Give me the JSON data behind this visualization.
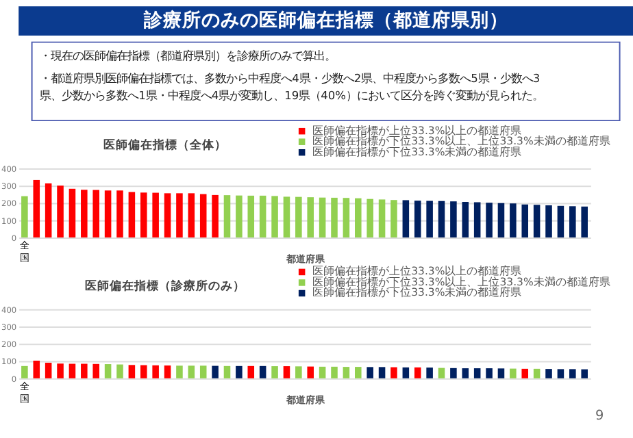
{
  "chart_data": [
    {
      "type": "other",
      "title": "診療所のみの医師偏在指標（都道府県別）",
      "annotations": [
        "・現在の医師偏在指標（都道府県別）を診療所のみで算出。",
        "・都道府県別医師偏在指標では、多数から中程度へ4県・少数へ2県、中程度から多数へ5県・少数へ3県、少数から多数へ1県・中程度へ4県が変動し、19県（40%）において区分を跨ぐ変動が見られた。"
      ]
    },
    {
      "type": "bar",
      "title": "医師偏在指標（全体）",
      "xlabel": "都道府県",
      "categories": [
        "全国",
        null,
        null,
        null,
        null,
        null,
        null,
        null,
        null,
        null,
        null,
        null,
        null,
        null,
        null,
        null,
        null,
        null,
        null,
        null,
        null,
        null,
        null,
        null,
        null,
        null,
        null,
        null,
        null,
        null,
        null,
        null,
        null,
        null,
        null,
        null,
        null,
        null,
        null,
        null,
        null,
        null,
        null,
        null,
        null,
        null,
        null,
        null
      ],
      "ylim": [
        0,
        400
      ],
      "yticks": [
        0,
        100,
        200,
        300,
        400
      ],
      "grid": "y",
      "legend": "top right",
      "series": [
        {
          "name": "医師偏在指標が上位33.3%以上の都道府県",
          "color": "#ff0000",
          "values": [
            null,
            333,
            313,
            300,
            282,
            276,
            275,
            272,
            272,
            263,
            260,
            259,
            256,
            256,
            256,
            251,
            246,
            null,
            null,
            null,
            null,
            null,
            null,
            null,
            null,
            null,
            null,
            null,
            null,
            null,
            null,
            null,
            null,
            null,
            null,
            null,
            null,
            null,
            null,
            null,
            null,
            null,
            null,
            null,
            null,
            null,
            null,
            null
          ]
        },
        {
          "name": "医師偏在指標が下位33.3%以上、上位33.3%未満の都道府県",
          "color": "#92d050",
          "values": [
            239,
            null,
            null,
            null,
            null,
            null,
            null,
            null,
            null,
            null,
            null,
            null,
            null,
            null,
            null,
            null,
            null,
            245,
            243,
            242,
            242,
            240,
            236,
            235,
            233,
            231,
            230,
            229,
            227,
            223,
            220,
            217,
            null,
            null,
            null,
            null,
            null,
            null,
            null,
            null,
            null,
            null,
            null,
            null,
            null,
            null,
            null,
            null
          ]
        },
        {
          "name": "医師偏在指標が下位33.3%未満の都道府県",
          "color": "#002060",
          "values": [
            null,
            null,
            null,
            null,
            null,
            null,
            null,
            null,
            null,
            null,
            null,
            null,
            null,
            null,
            null,
            null,
            null,
            null,
            null,
            null,
            null,
            null,
            null,
            null,
            null,
            null,
            null,
            null,
            null,
            null,
            null,
            null,
            216,
            213,
            212,
            211,
            209,
            206,
            204,
            201,
            199,
            197,
            191,
            189,
            186,
            183,
            181,
            179
          ]
        }
      ]
    },
    {
      "type": "bar",
      "title": "医師偏在指標（診療所のみ）",
      "xlabel": "都道府県",
      "categories": [
        "全国",
        null,
        null,
        null,
        null,
        null,
        null,
        null,
        null,
        null,
        null,
        null,
        null,
        null,
        null,
        null,
        null,
        null,
        null,
        null,
        null,
        null,
        null,
        null,
        null,
        null,
        null,
        null,
        null,
        null,
        null,
        null,
        null,
        null,
        null,
        null,
        null,
        null,
        null,
        null,
        null,
        null,
        null,
        null,
        null,
        null,
        null,
        null
      ],
      "ylim": [
        0,
        400
      ],
      "yticks": [
        0,
        100,
        200,
        300,
        400
      ],
      "grid": "y",
      "legend": "top right",
      "annotations": [
        "9"
      ],
      "series": [
        {
          "name": "医師偏在指標が上位33.3%以上の都道府県",
          "color": "#ff0000",
          "values": [
            null,
            102,
            90,
            85,
            84,
            84,
            83,
            null,
            null,
            77,
            76,
            75,
            74,
            null,
            null,
            null,
            null,
            null,
            null,
            71,
            null,
            null,
            70,
            null,
            68,
            null,
            null,
            null,
            null,
            null,
            null,
            64,
            null,
            63,
            null,
            null,
            null,
            null,
            null,
            null,
            null,
            null,
            55,
            null,
            null,
            null,
            null,
            null
          ]
        },
        {
          "name": "医師偏在指標が下位33.3%以上、上位33.3%未満の都道府県",
          "color": "#92d050",
          "values": [
            71,
            null,
            null,
            null,
            null,
            null,
            null,
            82,
            80,
            null,
            null,
            null,
            null,
            73,
            73,
            73,
            null,
            71,
            null,
            null,
            null,
            70,
            null,
            69,
            null,
            67,
            67,
            66,
            66,
            null,
            null,
            null,
            null,
            null,
            null,
            60,
            null,
            null,
            null,
            null,
            null,
            56,
            null,
            55,
            null,
            null,
            null,
            null
          ]
        },
        {
          "name": "医師偏在指標が下位33.3%未満の都道府県",
          "color": "#002060",
          "values": [
            null,
            null,
            null,
            null,
            null,
            null,
            null,
            null,
            null,
            null,
            null,
            null,
            null,
            null,
            null,
            null,
            72,
            null,
            71,
            null,
            71,
            null,
            null,
            null,
            null,
            null,
            null,
            null,
            null,
            65,
            65,
            null,
            63,
            null,
            62,
            null,
            59,
            58,
            58,
            58,
            57,
            null,
            null,
            null,
            54,
            53,
            53,
            52
          ]
        }
      ]
    }
  ]
}
